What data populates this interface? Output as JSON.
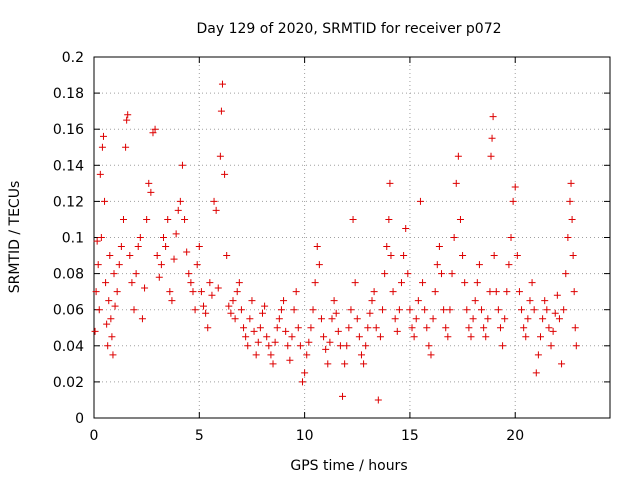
{
  "chart_data": {
    "type": "scatter",
    "title": "Day 129 of 2020, SRMTID for receiver p072",
    "xlabel": "GPS time / hours",
    "ylabel": "SRMTID / TECUs",
    "xlim": [
      0,
      24.5
    ],
    "ylim": [
      0,
      0.2
    ],
    "xticks": [
      0,
      5,
      10,
      15,
      20
    ],
    "yticks": [
      0,
      0.02,
      0.04,
      0.06,
      0.08,
      0.1,
      0.12,
      0.14,
      0.16,
      0.18,
      0.2
    ],
    "xtick_labels": [
      "0",
      "5",
      "10",
      "15",
      "20"
    ],
    "ytick_labels": [
      "0",
      "0.02",
      "0.04",
      "0.06",
      "0.08",
      "0.1",
      "0.12",
      "0.14",
      "0.16",
      "0.18",
      "0.2"
    ],
    "grid": true,
    "marker": "+",
    "color": "#dd0000",
    "series": [
      {
        "name": "SRMTID",
        "points": [
          [
            0.05,
            0.048
          ],
          [
            0.1,
            0.07
          ],
          [
            0.15,
            0.098
          ],
          [
            0.2,
            0.085
          ],
          [
            0.25,
            0.06
          ],
          [
            0.3,
            0.135
          ],
          [
            0.35,
            0.1
          ],
          [
            0.4,
            0.15
          ],
          [
            0.45,
            0.156
          ],
          [
            0.5,
            0.12
          ],
          [
            0.55,
            0.075
          ],
          [
            0.6,
            0.052
          ],
          [
            0.65,
            0.04
          ],
          [
            0.7,
            0.065
          ],
          [
            0.75,
            0.09
          ],
          [
            0.8,
            0.055
          ],
          [
            0.85,
            0.045
          ],
          [
            0.9,
            0.035
          ],
          [
            0.95,
            0.08
          ],
          [
            1.0,
            0.062
          ],
          [
            1.1,
            0.07
          ],
          [
            1.2,
            0.085
          ],
          [
            1.3,
            0.095
          ],
          [
            1.4,
            0.11
          ],
          [
            1.5,
            0.15
          ],
          [
            1.55,
            0.165
          ],
          [
            1.6,
            0.168
          ],
          [
            1.7,
            0.09
          ],
          [
            1.8,
            0.075
          ],
          [
            1.9,
            0.06
          ],
          [
            2.0,
            0.08
          ],
          [
            2.1,
            0.095
          ],
          [
            2.2,
            0.1
          ],
          [
            2.3,
            0.055
          ],
          [
            2.4,
            0.072
          ],
          [
            2.5,
            0.11
          ],
          [
            2.6,
            0.13
          ],
          [
            2.7,
            0.125
          ],
          [
            2.8,
            0.158
          ],
          [
            2.9,
            0.16
          ],
          [
            3.0,
            0.09
          ],
          [
            3.1,
            0.078
          ],
          [
            3.2,
            0.085
          ],
          [
            3.3,
            0.1
          ],
          [
            3.4,
            0.095
          ],
          [
            3.5,
            0.11
          ],
          [
            3.6,
            0.07
          ],
          [
            3.7,
            0.065
          ],
          [
            3.8,
            0.088
          ],
          [
            3.9,
            0.102
          ],
          [
            4.0,
            0.115
          ],
          [
            4.1,
            0.12
          ],
          [
            4.2,
            0.14
          ],
          [
            4.3,
            0.11
          ],
          [
            4.4,
            0.092
          ],
          [
            4.5,
            0.08
          ],
          [
            4.6,
            0.075
          ],
          [
            4.7,
            0.07
          ],
          [
            4.8,
            0.06
          ],
          [
            4.9,
            0.085
          ],
          [
            5.0,
            0.095
          ],
          [
            5.1,
            0.07
          ],
          [
            5.2,
            0.062
          ],
          [
            5.3,
            0.058
          ],
          [
            5.4,
            0.05
          ],
          [
            5.5,
            0.075
          ],
          [
            5.6,
            0.068
          ],
          [
            5.7,
            0.12
          ],
          [
            5.8,
            0.115
          ],
          [
            5.9,
            0.072
          ],
          [
            6.0,
            0.145
          ],
          [
            6.05,
            0.17
          ],
          [
            6.1,
            0.185
          ],
          [
            6.2,
            0.135
          ],
          [
            6.3,
            0.09
          ],
          [
            6.4,
            0.062
          ],
          [
            6.5,
            0.058
          ],
          [
            6.6,
            0.065
          ],
          [
            6.7,
            0.055
          ],
          [
            6.8,
            0.07
          ],
          [
            6.9,
            0.075
          ],
          [
            7.0,
            0.06
          ],
          [
            7.1,
            0.05
          ],
          [
            7.2,
            0.045
          ],
          [
            7.3,
            0.04
          ],
          [
            7.4,
            0.055
          ],
          [
            7.5,
            0.065
          ],
          [
            7.6,
            0.048
          ],
          [
            7.7,
            0.035
          ],
          [
            7.8,
            0.042
          ],
          [
            7.9,
            0.05
          ],
          [
            8.0,
            0.058
          ],
          [
            8.1,
            0.062
          ],
          [
            8.2,
            0.045
          ],
          [
            8.3,
            0.04
          ],
          [
            8.4,
            0.035
          ],
          [
            8.5,
            0.03
          ],
          [
            8.6,
            0.042
          ],
          [
            8.7,
            0.05
          ],
          [
            8.8,
            0.055
          ],
          [
            8.9,
            0.06
          ],
          [
            9.0,
            0.065
          ],
          [
            9.1,
            0.048
          ],
          [
            9.2,
            0.04
          ],
          [
            9.3,
            0.032
          ],
          [
            9.4,
            0.045
          ],
          [
            9.5,
            0.06
          ],
          [
            9.6,
            0.07
          ],
          [
            9.7,
            0.05
          ],
          [
            9.8,
            0.04
          ],
          [
            9.9,
            0.02
          ],
          [
            10.0,
            0.025
          ],
          [
            10.1,
            0.035
          ],
          [
            10.2,
            0.042
          ],
          [
            10.3,
            0.05
          ],
          [
            10.4,
            0.06
          ],
          [
            10.5,
            0.075
          ],
          [
            10.6,
            0.095
          ],
          [
            10.7,
            0.085
          ],
          [
            10.8,
            0.055
          ],
          [
            10.9,
            0.045
          ],
          [
            11.0,
            0.038
          ],
          [
            11.1,
            0.03
          ],
          [
            11.2,
            0.042
          ],
          [
            11.3,
            0.055
          ],
          [
            11.4,
            0.065
          ],
          [
            11.5,
            0.058
          ],
          [
            11.6,
            0.048
          ],
          [
            11.7,
            0.04
          ],
          [
            11.8,
            0.012
          ],
          [
            11.9,
            0.03
          ],
          [
            12.0,
            0.04
          ],
          [
            12.1,
            0.05
          ],
          [
            12.2,
            0.06
          ],
          [
            12.3,
            0.11
          ],
          [
            12.4,
            0.075
          ],
          [
            12.5,
            0.055
          ],
          [
            12.6,
            0.045
          ],
          [
            12.7,
            0.035
          ],
          [
            12.8,
            0.03
          ],
          [
            12.9,
            0.04
          ],
          [
            13.0,
            0.05
          ],
          [
            13.1,
            0.058
          ],
          [
            13.2,
            0.065
          ],
          [
            13.3,
            0.07
          ],
          [
            13.4,
            0.05
          ],
          [
            13.5,
            0.01
          ],
          [
            13.6,
            0.045
          ],
          [
            13.7,
            0.06
          ],
          [
            13.8,
            0.08
          ],
          [
            13.9,
            0.095
          ],
          [
            14.0,
            0.11
          ],
          [
            14.05,
            0.13
          ],
          [
            14.1,
            0.09
          ],
          [
            14.2,
            0.07
          ],
          [
            14.3,
            0.055
          ],
          [
            14.4,
            0.048
          ],
          [
            14.5,
            0.06
          ],
          [
            14.6,
            0.075
          ],
          [
            14.7,
            0.09
          ],
          [
            14.8,
            0.105
          ],
          [
            14.9,
            0.08
          ],
          [
            15.0,
            0.06
          ],
          [
            15.1,
            0.05
          ],
          [
            15.2,
            0.045
          ],
          [
            15.3,
            0.055
          ],
          [
            15.4,
            0.065
          ],
          [
            15.5,
            0.12
          ],
          [
            15.6,
            0.075
          ],
          [
            15.7,
            0.06
          ],
          [
            15.8,
            0.05
          ],
          [
            15.9,
            0.04
          ],
          [
            16.0,
            0.035
          ],
          [
            16.1,
            0.055
          ],
          [
            16.2,
            0.07
          ],
          [
            16.3,
            0.085
          ],
          [
            16.4,
            0.095
          ],
          [
            16.5,
            0.08
          ],
          [
            16.6,
            0.06
          ],
          [
            16.7,
            0.05
          ],
          [
            16.8,
            0.045
          ],
          [
            16.9,
            0.06
          ],
          [
            17.0,
            0.08
          ],
          [
            17.1,
            0.1
          ],
          [
            17.2,
            0.13
          ],
          [
            17.3,
            0.145
          ],
          [
            17.4,
            0.11
          ],
          [
            17.5,
            0.09
          ],
          [
            17.6,
            0.075
          ],
          [
            17.7,
            0.06
          ],
          [
            17.8,
            0.05
          ],
          [
            17.9,
            0.045
          ],
          [
            18.0,
            0.055
          ],
          [
            18.1,
            0.065
          ],
          [
            18.2,
            0.075
          ],
          [
            18.3,
            0.085
          ],
          [
            18.4,
            0.06
          ],
          [
            18.5,
            0.05
          ],
          [
            18.6,
            0.045
          ],
          [
            18.7,
            0.055
          ],
          [
            18.8,
            0.07
          ],
          [
            18.85,
            0.145
          ],
          [
            18.9,
            0.155
          ],
          [
            18.95,
            0.167
          ],
          [
            19.0,
            0.09
          ],
          [
            19.1,
            0.07
          ],
          [
            19.2,
            0.06
          ],
          [
            19.3,
            0.05
          ],
          [
            19.4,
            0.04
          ],
          [
            19.5,
            0.055
          ],
          [
            19.6,
            0.07
          ],
          [
            19.7,
            0.085
          ],
          [
            19.8,
            0.1
          ],
          [
            19.9,
            0.12
          ],
          [
            20.0,
            0.128
          ],
          [
            20.1,
            0.09
          ],
          [
            20.2,
            0.07
          ],
          [
            20.3,
            0.06
          ],
          [
            20.4,
            0.05
          ],
          [
            20.5,
            0.045
          ],
          [
            20.6,
            0.055
          ],
          [
            20.7,
            0.065
          ],
          [
            20.8,
            0.075
          ],
          [
            20.9,
            0.06
          ],
          [
            21.0,
            0.025
          ],
          [
            21.1,
            0.035
          ],
          [
            21.2,
            0.045
          ],
          [
            21.3,
            0.055
          ],
          [
            21.4,
            0.065
          ],
          [
            21.5,
            0.06
          ],
          [
            21.6,
            0.05
          ],
          [
            21.7,
            0.04
          ],
          [
            21.8,
            0.048
          ],
          [
            21.9,
            0.058
          ],
          [
            22.0,
            0.068
          ],
          [
            22.1,
            0.055
          ],
          [
            22.2,
            0.03
          ],
          [
            22.3,
            0.06
          ],
          [
            22.4,
            0.08
          ],
          [
            22.5,
            0.1
          ],
          [
            22.6,
            0.12
          ],
          [
            22.65,
            0.13
          ],
          [
            22.7,
            0.11
          ],
          [
            22.75,
            0.09
          ],
          [
            22.8,
            0.07
          ],
          [
            22.85,
            0.05
          ],
          [
            22.9,
            0.04
          ]
        ]
      }
    ]
  }
}
